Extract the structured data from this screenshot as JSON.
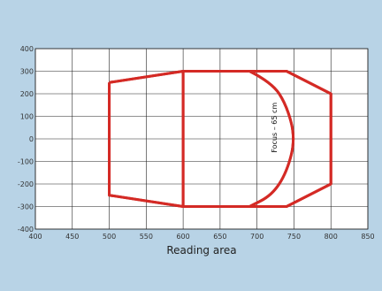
{
  "chart_data": {
    "type": "line",
    "title": "",
    "xlabel": "Reading area",
    "ylabel": "",
    "xlim": [
      400,
      850
    ],
    "ylim": [
      -400,
      400
    ],
    "xticks": [
      400,
      450,
      500,
      550,
      600,
      650,
      700,
      750,
      800,
      850
    ],
    "yticks": [
      -400,
      -300,
      -200,
      -100,
      0,
      100,
      200,
      300,
      400
    ],
    "grid": true,
    "background": "#b8d3e6",
    "plot_background": "#ffffff",
    "line_color": "#d42a25",
    "series": [
      {
        "kind": "outline",
        "points": [
          [
            500,
            250
          ],
          [
            600,
            300
          ],
          [
            740,
            300
          ],
          [
            800,
            200
          ],
          [
            800,
            -200
          ],
          [
            740,
            -300
          ],
          [
            600,
            -300
          ],
          [
            500,
            -250
          ],
          [
            500,
            250
          ]
        ]
      },
      {
        "kind": "divider",
        "points": [
          [
            600,
            300
          ],
          [
            600,
            -300
          ]
        ]
      },
      {
        "kind": "focus-arc",
        "points": [
          [
            690,
            300
          ],
          [
            720,
            250
          ],
          [
            740,
            150
          ],
          [
            752,
            0
          ],
          [
            740,
            -150
          ],
          [
            720,
            -250
          ],
          [
            690,
            -300
          ]
        ]
      }
    ],
    "annotations": [
      {
        "text": "Focus – 65 cm",
        "x": 727,
        "y": 50
      }
    ]
  }
}
